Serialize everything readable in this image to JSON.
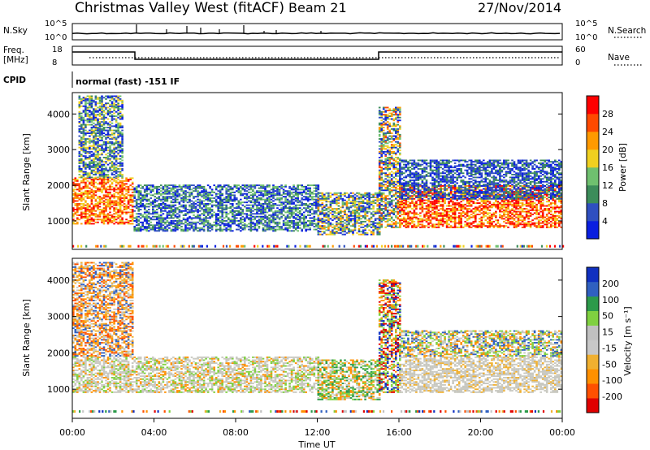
{
  "header": {
    "title": "Christmas Valley West (fitACF)",
    "beam": "Beam 21",
    "date": "27/Nov/2014"
  },
  "summary_panels": {
    "nsky_label": "N.Sky",
    "nsky_ticks": [
      "10^5",
      "10^0"
    ],
    "nsearch_label": "N.Search",
    "nsearch_ticks": [
      "10^5",
      "10^0"
    ],
    "freq_label_1": "Freq.",
    "freq_label_2": "[MHz]",
    "freq_ticks": [
      "18",
      "8"
    ],
    "nave_label": "Nave",
    "nave_ticks": [
      "60",
      "0"
    ],
    "cpid_label": "CPID",
    "cpid_text": "normal (fast) -151 IF"
  },
  "colors": {
    "power_scale": [
      "#0a1fe0",
      "#2f4fc0",
      "#3c8c5a",
      "#6fc06f",
      "#f0d020",
      "#ff9a00",
      "#ff4a00",
      "#ff0000"
    ],
    "velocity_scale": [
      "#e00000",
      "#ff5000",
      "#ff9000",
      "#f0b030",
      "#c8c8c8",
      "#c0c0c0",
      "#7fd040",
      "#2c9a4a",
      "#3060c0",
      "#1030c0"
    ],
    "ground_scatter": "#c8c8c0"
  },
  "chart_data": [
    {
      "type": "heatmap",
      "panel": "power",
      "xlabel": "",
      "ylabel": "Slant Range [km]",
      "yticks": [
        "1000",
        "2000",
        "3000",
        "4000"
      ],
      "ylim": [
        200,
        4600
      ],
      "colorbar_label": "Power [dB]",
      "colorbar_ticks": [
        "4",
        "8",
        "12",
        "16",
        "20",
        "24",
        "28"
      ],
      "colorbar_range": [
        0,
        32
      ]
    },
    {
      "type": "heatmap",
      "panel": "velocity",
      "xlabel": "Time UT",
      "ylabel": "Slant Range [km]",
      "yticks": [
        "1000",
        "2000",
        "3000",
        "4000"
      ],
      "ylim": [
        200,
        4600
      ],
      "colorbar_label": "Velocity [m s⁻¹]",
      "colorbar_ticks": [
        "200",
        "100",
        "50",
        "15",
        "-15",
        "-50",
        "-100",
        "-200"
      ],
      "xticks": [
        "00:00",
        "04:00",
        "08:00",
        "12:00",
        "16:00",
        "20:00",
        "00:00"
      ]
    }
  ]
}
